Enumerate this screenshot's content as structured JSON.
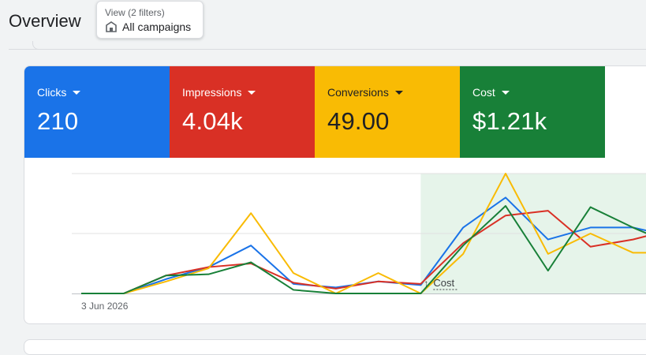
{
  "header": {
    "title": "Overview",
    "filter_chip": {
      "caption": "View (2 filters)",
      "value": "All campaigns",
      "icon": "store-icon"
    }
  },
  "metrics": [
    {
      "label": "Clicks",
      "value": "210",
      "bg": "#1a73e8",
      "fg": "#ffffff"
    },
    {
      "label": "Impressions",
      "value": "4.04k",
      "bg": "#d93025",
      "fg": "#ffffff"
    },
    {
      "label": "Conversions",
      "value": "49.00",
      "bg": "#f9bb04",
      "fg": "#202124"
    },
    {
      "label": "Cost",
      "value": "$1.21k",
      "bg": "#188038",
      "fg": "#ffffff"
    }
  ],
  "chart_data": {
    "type": "line",
    "x_start_label": "3 Jun 2026",
    "annotation": "Cost",
    "highlight_region_start_index": 8,
    "ylim": [
      0,
      1
    ],
    "grid": true,
    "series": [
      {
        "color": "#1a73e8",
        "values": [
          0,
          0,
          0.12,
          0.22,
          0.4,
          0.08,
          0.05,
          0.1,
          0.07,
          0.55,
          0.8,
          0.45,
          0.55,
          0.55,
          0.47
        ]
      },
      {
        "color": "#d93025",
        "values": [
          0,
          0,
          0.15,
          0.22,
          0.25,
          0.09,
          0.04,
          0.1,
          0.08,
          0.42,
          0.65,
          0.69,
          0.39,
          0.45,
          0.54
        ]
      },
      {
        "color": "#f9bb04",
        "values": [
          0,
          0,
          0.1,
          0.21,
          0.67,
          0.17,
          0.0,
          0.17,
          0.0,
          0.33,
          1.0,
          0.33,
          0.5,
          0.34,
          0.34
        ]
      },
      {
        "color": "#188038",
        "values": [
          0,
          0,
          0.15,
          0.16,
          0.26,
          0.03,
          0.0,
          0.0,
          0.0,
          0.4,
          0.73,
          0.19,
          0.72,
          0.55,
          0.4
        ]
      }
    ]
  }
}
